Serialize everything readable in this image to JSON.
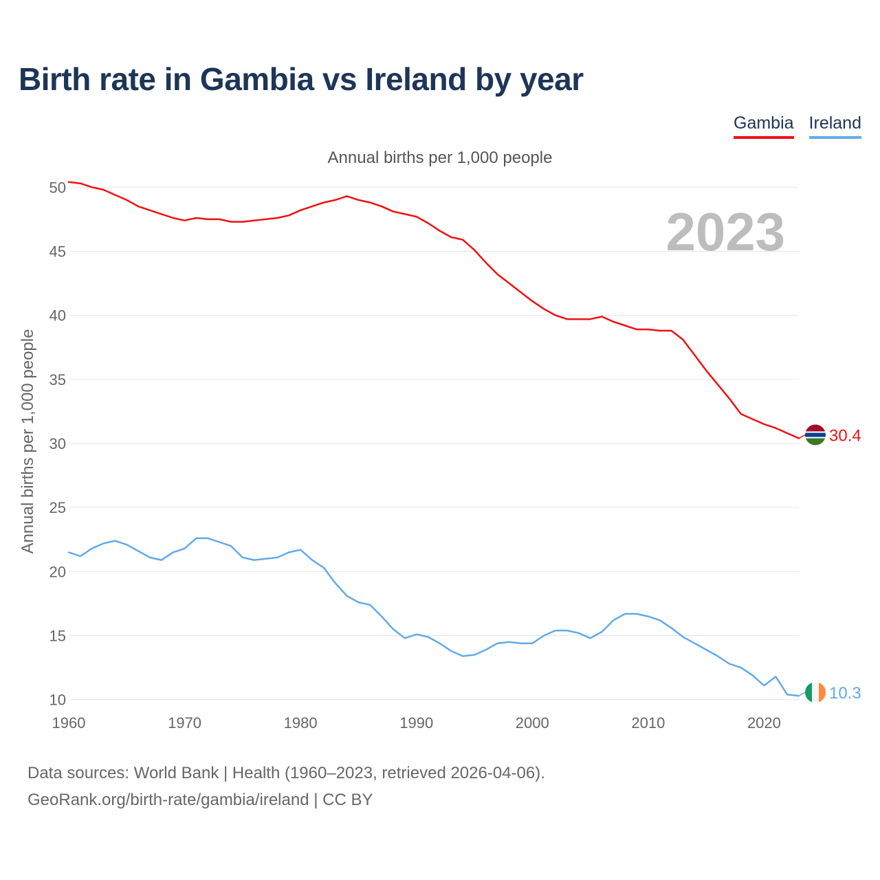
{
  "title": "Birth rate in Gambia vs Ireland by year",
  "subtitle": "Annual births per 1,000 people",
  "year_overlay": "2023",
  "legend": [
    {
      "name": "Gambia",
      "color": "#ee1111"
    },
    {
      "name": "Ireland",
      "color": "#62aaea"
    }
  ],
  "footer": {
    "line1": "Data sources: World Bank | Health (1960–2023, retrieved 2026-04-06).",
    "line2": "GeoRank.org/birth-rate/gambia/ireland | CC BY"
  },
  "chart_data": {
    "type": "line",
    "title": "Birth rate in Gambia vs Ireland by year",
    "xlabel": "",
    "ylabel": "Annual births per 1,000 people",
    "xlim": [
      1960,
      2023
    ],
    "ylim": [
      8,
      52
    ],
    "x_ticks": [
      1960,
      1970,
      1980,
      1990,
      2000,
      2010,
      2020
    ],
    "y_ticks": [
      10,
      15,
      20,
      25,
      30,
      35,
      40,
      45,
      50
    ],
    "grid": true,
    "legend_position": "top-right",
    "x": [
      1960,
      1961,
      1962,
      1963,
      1964,
      1965,
      1966,
      1967,
      1968,
      1969,
      1970,
      1971,
      1972,
      1973,
      1974,
      1975,
      1976,
      1977,
      1978,
      1979,
      1980,
      1981,
      1982,
      1983,
      1984,
      1985,
      1986,
      1987,
      1988,
      1989,
      1990,
      1991,
      1992,
      1993,
      1994,
      1995,
      1996,
      1997,
      1998,
      1999,
      2000,
      2001,
      2002,
      2003,
      2004,
      2005,
      2006,
      2007,
      2008,
      2009,
      2010,
      2011,
      2012,
      2013,
      2014,
      2015,
      2016,
      2017,
      2018,
      2019,
      2020,
      2021,
      2022,
      2023
    ],
    "series": [
      {
        "name": "Gambia",
        "color": "#ee1111",
        "end_label": "30.4",
        "flag": "gambia",
        "values": [
          50.4,
          50.3,
          50.0,
          49.8,
          49.4,
          49.0,
          48.5,
          48.2,
          47.9,
          47.6,
          47.4,
          47.6,
          47.5,
          47.5,
          47.3,
          47.3,
          47.4,
          47.5,
          47.6,
          47.8,
          48.2,
          48.5,
          48.8,
          49.0,
          49.3,
          49.0,
          48.8,
          48.5,
          48.1,
          47.9,
          47.7,
          47.2,
          46.6,
          46.1,
          45.9,
          45.1,
          44.1,
          43.2,
          42.5,
          41.8,
          41.1,
          40.5,
          40.0,
          39.7,
          39.7,
          39.7,
          39.9,
          39.5,
          39.2,
          38.9,
          38.9,
          38.8,
          38.8,
          38.1,
          36.9,
          35.7,
          34.6,
          33.5,
          32.3,
          31.9,
          31.5,
          31.2,
          30.8,
          30.4
        ]
      },
      {
        "name": "Ireland",
        "color": "#62aaea",
        "end_label": "10.3",
        "flag": "ireland",
        "values": [
          21.5,
          21.2,
          21.8,
          22.2,
          22.4,
          22.1,
          21.6,
          21.1,
          20.9,
          21.5,
          21.8,
          22.6,
          22.6,
          22.3,
          22.0,
          21.1,
          20.9,
          21.0,
          21.1,
          21.5,
          21.7,
          20.9,
          20.3,
          19.1,
          18.1,
          17.6,
          17.4,
          16.5,
          15.5,
          14.8,
          15.1,
          14.9,
          14.4,
          13.8,
          13.4,
          13.5,
          13.9,
          14.4,
          14.5,
          14.4,
          14.4,
          15.0,
          15.4,
          15.4,
          15.2,
          14.8,
          15.3,
          16.2,
          16.7,
          16.7,
          16.5,
          16.2,
          15.6,
          14.9,
          14.4,
          13.9,
          13.4,
          12.8,
          12.5,
          11.9,
          11.1,
          11.8,
          10.4,
          10.3
        ]
      }
    ]
  }
}
